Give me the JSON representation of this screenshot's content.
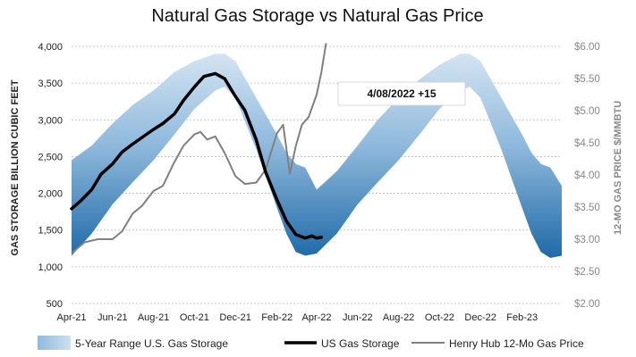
{
  "chart_data": {
    "type": "line",
    "title": "Natural Gas Storage vs Natural Gas Price",
    "ylabel_left": "GAS STORAGE BILLION CUBIC FEET",
    "ylabel_right": "12-MO GAS PRICE $/MMBTU",
    "ylim_left": [
      500,
      4000
    ],
    "ylim_right": [
      2.0,
      6.0
    ],
    "yticks_left": [
      "500",
      "1,000",
      "1,500",
      "2,000",
      "2,500",
      "3,000",
      "3,500",
      "4,000"
    ],
    "yticks_right": [
      "$2.00",
      "$2.50",
      "$3.00",
      "$3.50",
      "$4.00",
      "$4.50",
      "$5.00",
      "$5.50",
      "$6.00"
    ],
    "xlim": [
      "2021-04-01",
      "2023-04-01"
    ],
    "xticks": [
      "Apr-21",
      "Jun-21",
      "Aug-21",
      "Oct-21",
      "Dec-21",
      "Feb-22",
      "Apr-22",
      "Jun-22",
      "Aug-22",
      "Oct-22",
      "Dec-22",
      "Feb-23"
    ],
    "grid": true,
    "legend_position": "bottom",
    "annotation": "4/08/2022 +15",
    "colors": {
      "range_light": "#c9dcee",
      "range_dark": "#2f78b4",
      "storage": "#000000",
      "price": "#808080"
    },
    "series": [
      {
        "name": "5-Year Range U.S. Gas Storage",
        "kind": "band",
        "axis": "left",
        "x": [
          "2021-04-01",
          "2021-05-01",
          "2021-06-01",
          "2021-07-01",
          "2021-08-01",
          "2021-09-01",
          "2021-10-01",
          "2021-11-01",
          "2021-11-15",
          "2021-12-01",
          "2022-01-01",
          "2022-02-01",
          "2022-02-15",
          "2022-03-01",
          "2022-03-15",
          "2022-04-01",
          "2022-05-01",
          "2022-06-01",
          "2022-07-01",
          "2022-08-01",
          "2022-09-01",
          "2022-10-01",
          "2022-11-01",
          "2022-11-15",
          "2022-12-01",
          "2023-01-01",
          "2023-02-01",
          "2023-02-15",
          "2023-03-01",
          "2023-03-15",
          "2023-04-01"
        ],
        "low": [
          1150,
          1450,
          1850,
          2150,
          2450,
          2800,
          3150,
          3400,
          3450,
          3300,
          2600,
          1800,
          1450,
          1200,
          1150,
          1180,
          1450,
          1850,
          2150,
          2450,
          2800,
          3150,
          3400,
          3450,
          3300,
          2600,
          1800,
          1450,
          1200,
          1120,
          1150
        ],
        "high": [
          2450,
          2650,
          2950,
          3200,
          3400,
          3650,
          3800,
          3900,
          3900,
          3800,
          3300,
          2800,
          2550,
          2400,
          2350,
          2050,
          2300,
          2650,
          3000,
          3300,
          3550,
          3750,
          3900,
          3900,
          3800,
          3300,
          2800,
          2550,
          2400,
          2350,
          2100
        ]
      },
      {
        "name": "US Gas Storage",
        "kind": "line",
        "axis": "left",
        "x": [
          "2021-04-01",
          "2021-04-15",
          "2021-05-01",
          "2021-05-15",
          "2021-06-01",
          "2021-06-15",
          "2021-07-01",
          "2021-07-15",
          "2021-08-01",
          "2021-08-15",
          "2021-09-01",
          "2021-09-15",
          "2021-10-01",
          "2021-10-15",
          "2021-11-01",
          "2021-11-15",
          "2021-12-01",
          "2021-12-15",
          "2022-01-01",
          "2022-01-15",
          "2022-02-01",
          "2022-02-15",
          "2022-03-01",
          "2022-03-15",
          "2022-03-25",
          "2022-04-01",
          "2022-04-08"
        ],
        "values": [
          1790,
          1900,
          2050,
          2260,
          2400,
          2560,
          2670,
          2760,
          2870,
          2950,
          3080,
          3270,
          3450,
          3590,
          3630,
          3560,
          3320,
          3130,
          2730,
          2290,
          1910,
          1620,
          1440,
          1390,
          1420,
          1390,
          1400
        ]
      },
      {
        "name": "Henry Hub 12-Mo Gas Price",
        "kind": "line",
        "axis": "right",
        "x": [
          "2021-04-01",
          "2021-04-20",
          "2021-05-10",
          "2021-06-01",
          "2021-06-15",
          "2021-07-01",
          "2021-07-15",
          "2021-08-01",
          "2021-08-15",
          "2021-09-01",
          "2021-09-15",
          "2021-10-01",
          "2021-10-10",
          "2021-10-20",
          "2021-11-01",
          "2021-11-15",
          "2021-12-01",
          "2021-12-15",
          "2022-01-01",
          "2022-01-15",
          "2022-02-01",
          "2022-02-10",
          "2022-02-20",
          "2022-03-01",
          "2022-03-10",
          "2022-03-20",
          "2022-04-01",
          "2022-04-08",
          "2022-04-15"
        ],
        "values": [
          2.78,
          2.95,
          3.0,
          3.0,
          3.12,
          3.4,
          3.52,
          3.75,
          3.83,
          4.2,
          4.46,
          4.63,
          4.67,
          4.55,
          4.6,
          4.34,
          3.98,
          3.86,
          3.88,
          4.08,
          4.65,
          4.78,
          4.02,
          4.45,
          4.78,
          4.9,
          5.25,
          5.6,
          6.05
        ]
      }
    ]
  }
}
